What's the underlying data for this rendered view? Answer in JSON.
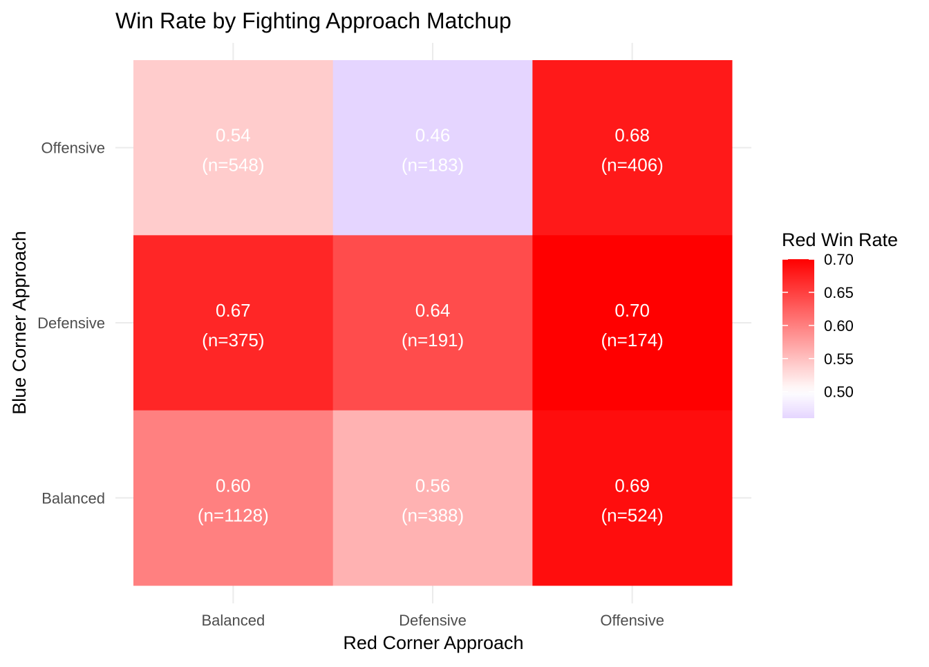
{
  "chart_data": {
    "type": "heatmap",
    "title": "Win Rate by Fighting Approach Matchup",
    "xlabel": "Red Corner Approach",
    "ylabel": "Blue Corner Approach",
    "x_categories": [
      "Balanced",
      "Defensive",
      "Offensive"
    ],
    "y_categories": [
      "Balanced",
      "Defensive",
      "Offensive"
    ],
    "cells": [
      {
        "x": "Balanced",
        "y": "Offensive",
        "value": 0.54,
        "n": 548,
        "label": "0.54\n(n=548)"
      },
      {
        "x": "Defensive",
        "y": "Offensive",
        "value": 0.46,
        "n": 183,
        "label": "0.46\n(n=183)"
      },
      {
        "x": "Offensive",
        "y": "Offensive",
        "value": 0.68,
        "n": 406,
        "label": "0.68\n(n=406)"
      },
      {
        "x": "Balanced",
        "y": "Defensive",
        "value": 0.67,
        "n": 375,
        "label": "0.67\n(n=375)"
      },
      {
        "x": "Defensive",
        "y": "Defensive",
        "value": 0.64,
        "n": 191,
        "label": "0.64\n(n=191)"
      },
      {
        "x": "Offensive",
        "y": "Defensive",
        "value": 0.7,
        "n": 174,
        "label": "0.70\n(n=174)"
      },
      {
        "x": "Balanced",
        "y": "Balanced",
        "value": 0.6,
        "n": 1128,
        "label": "0.60\n(n=1128)"
      },
      {
        "x": "Defensive",
        "y": "Balanced",
        "value": 0.56,
        "n": 388,
        "label": "0.56\n(n=388)"
      },
      {
        "x": "Offensive",
        "y": "Balanced",
        "value": 0.69,
        "n": 524,
        "label": "0.69\n(n=524)"
      }
    ],
    "legend": {
      "title": "Red Win Rate",
      "ticks": [
        "0.70",
        "0.65",
        "0.60",
        "0.55",
        "0.50"
      ],
      "tick_values": [
        0.7,
        0.65,
        0.6,
        0.55,
        0.5
      ],
      "range": [
        0.46,
        0.7
      ],
      "midpoint": 0.5,
      "low_color": "#e5d5ff",
      "mid_color": "#ffffff",
      "high_color": "#ff0000",
      "placement": "right"
    },
    "grid": true,
    "grid_color": "#ebebeb",
    "label_color": "#ffffff"
  }
}
